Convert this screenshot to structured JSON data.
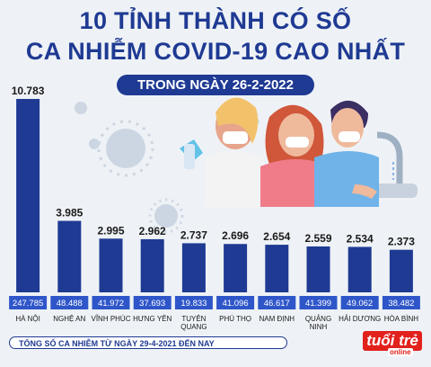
{
  "header": {
    "title_line1": "10 TỈNH THÀNH CÓ SỐ",
    "title_line2": "CA NHIỄM COVID-19 CAO NHẤT",
    "date_label": "TRONG NGÀY 26-2-2022"
  },
  "footer": {
    "note": "TỔNG SỐ CA NHIỄM TỪ NGÀY 29-4-2021 ĐẾN NAY",
    "logo_text": "tuổi trẻ",
    "logo_sub": "online"
  },
  "colors": {
    "bar": "#1f3a93",
    "title": "#1f3a93",
    "total_box": "#2f56c9",
    "accent": "#e2211c"
  },
  "chart_data": {
    "type": "bar",
    "categories": [
      "HÀ NỘI",
      "NGHỆ AN",
      "VĨNH PHÚC",
      "HƯNG YÊN",
      "TUYÊN QUANG",
      "PHÚ THỌ",
      "NAM ĐỊNH",
      "QUẢNG NINH",
      "HẢI DƯƠNG",
      "HÒA BÌNH"
    ],
    "category_lines": [
      [
        "HÀ NỘI"
      ],
      [
        "NGHỆ AN"
      ],
      [
        "VĨNH PHÚC"
      ],
      [
        "HƯNG YÊN"
      ],
      [
        "TUYÊN",
        "QUANG"
      ],
      [
        "PHÚ THỌ"
      ],
      [
        "NAM ĐỊNH"
      ],
      [
        "QUẢNG",
        "NINH"
      ],
      [
        "HẢI DƯƠNG"
      ],
      [
        "HÒA BÌNH"
      ]
    ],
    "values": [
      10783,
      3985,
      2995,
      2962,
      2737,
      2696,
      2654,
      2559,
      2534,
      2373
    ],
    "value_labels": [
      "10.783",
      "3.985",
      "2.995",
      "2.962",
      "2.737",
      "2.696",
      "2.654",
      "2.559",
      "2.534",
      "2.373"
    ],
    "totals": [
      247785,
      48488,
      41972,
      37693,
      19833,
      41096,
      46617,
      41399,
      49062,
      38482
    ],
    "total_labels": [
      "247.785",
      "48.488",
      "41.972",
      "37.693",
      "19.833",
      "41.096",
      "46.617",
      "41.399",
      "49.062",
      "38.482"
    ],
    "ylim": [
      0,
      10783
    ]
  }
}
